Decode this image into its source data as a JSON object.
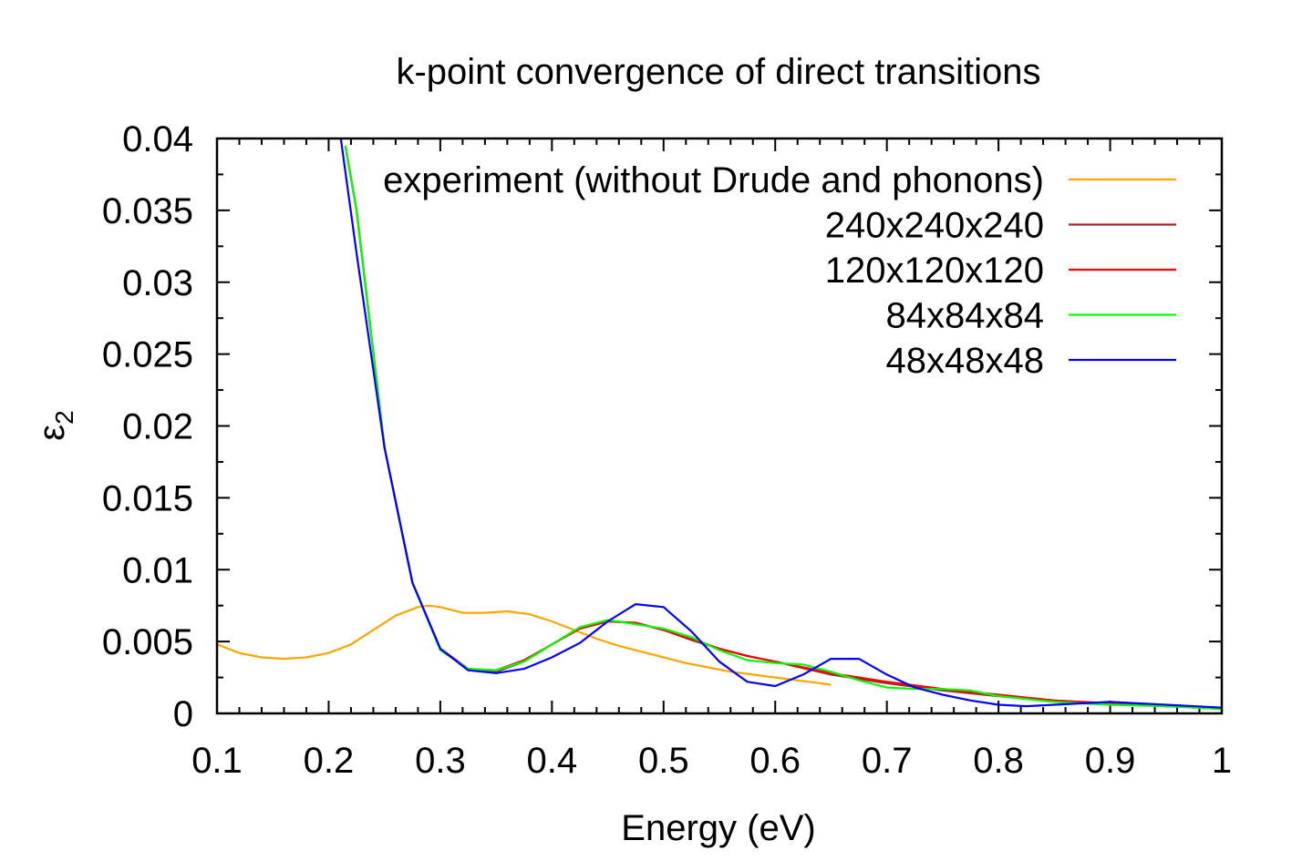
{
  "chart_data": {
    "type": "line",
    "title": "k-point convergence of direct transitions",
    "xlabel": "Energy (eV)",
    "ylabel": "ε",
    "ylabel_subscript": "2",
    "xlim": [
      0.1,
      1.0
    ],
    "ylim": [
      0,
      0.04
    ],
    "x_ticks": [
      "0.1",
      "0.2",
      "0.3",
      "0.4",
      "0.5",
      "0.6",
      "0.7",
      "0.8",
      "0.9",
      "1"
    ],
    "y_ticks": [
      "0",
      "0.005",
      "0.01",
      "0.015",
      "0.02",
      "0.025",
      "0.03",
      "0.035",
      "0.04"
    ],
    "grid": false,
    "legend_position": "top-right",
    "series": [
      {
        "name": "experiment (without Drude and phonons)",
        "color": "#ffa500",
        "x": [
          0.1,
          0.12,
          0.14,
          0.16,
          0.18,
          0.2,
          0.22,
          0.24,
          0.26,
          0.28,
          0.29,
          0.3,
          0.32,
          0.34,
          0.36,
          0.38,
          0.4,
          0.42,
          0.44,
          0.46,
          0.48,
          0.5,
          0.52,
          0.54,
          0.56,
          0.58,
          0.6,
          0.62,
          0.65
        ],
        "y": [
          0.0048,
          0.0042,
          0.0039,
          0.0038,
          0.0039,
          0.0042,
          0.0048,
          0.0058,
          0.0068,
          0.0074,
          0.0075,
          0.0074,
          0.007,
          0.007,
          0.0071,
          0.0069,
          0.0064,
          0.0058,
          0.0052,
          0.0047,
          0.0043,
          0.0039,
          0.0035,
          0.0032,
          0.0029,
          0.0027,
          0.0025,
          0.0023,
          0.002
        ]
      },
      {
        "name": "240x240x240",
        "color": "#a52a2a",
        "x": [
          0.215,
          0.225,
          0.25,
          0.275,
          0.3,
          0.325,
          0.35,
          0.375,
          0.4,
          0.425,
          0.45,
          0.475,
          0.5,
          0.525,
          0.55,
          0.575,
          0.6,
          0.65,
          0.7,
          0.75,
          0.8,
          0.85,
          0.9,
          0.95,
          1.0
        ],
        "y": [
          0.0395,
          0.035,
          0.0185,
          0.0091,
          0.0045,
          0.0031,
          0.0029,
          0.0036,
          0.0048,
          0.0059,
          0.0064,
          0.0063,
          0.0058,
          0.0051,
          0.0045,
          0.004,
          0.0036,
          0.0027,
          0.0021,
          0.0016,
          0.0012,
          0.0009,
          0.0007,
          0.0005,
          0.0004
        ]
      },
      {
        "name": "120x120x120",
        "color": "#ff0000",
        "x": [
          0.215,
          0.225,
          0.25,
          0.275,
          0.3,
          0.325,
          0.35,
          0.375,
          0.4,
          0.425,
          0.45,
          0.475,
          0.5,
          0.525,
          0.55,
          0.575,
          0.6,
          0.65,
          0.7,
          0.75,
          0.8,
          0.85,
          0.9,
          0.95,
          1.0
        ],
        "y": [
          0.0395,
          0.035,
          0.0185,
          0.0091,
          0.0045,
          0.0031,
          0.003,
          0.0037,
          0.0048,
          0.0059,
          0.0064,
          0.0063,
          0.0058,
          0.0052,
          0.0045,
          0.004,
          0.0036,
          0.0028,
          0.0022,
          0.0017,
          0.0013,
          0.0009,
          0.0007,
          0.0005,
          0.0004
        ]
      },
      {
        "name": "84x84x84",
        "color": "#00ff00",
        "x": [
          0.215,
          0.225,
          0.25,
          0.275,
          0.3,
          0.325,
          0.35,
          0.375,
          0.4,
          0.425,
          0.45,
          0.475,
          0.5,
          0.525,
          0.55,
          0.575,
          0.6,
          0.625,
          0.65,
          0.675,
          0.7,
          0.725,
          0.75,
          0.775,
          0.8,
          0.85,
          0.9,
          0.95,
          1.0
        ],
        "y": [
          0.0395,
          0.035,
          0.0185,
          0.0091,
          0.0044,
          0.0031,
          0.003,
          0.0036,
          0.0048,
          0.006,
          0.0065,
          0.0062,
          0.0059,
          0.0053,
          0.0044,
          0.0037,
          0.0035,
          0.0034,
          0.0029,
          0.0023,
          0.0018,
          0.0017,
          0.0017,
          0.0016,
          0.0012,
          0.0008,
          0.0006,
          0.0005,
          0.0003
        ]
      },
      {
        "name": "48x48x48",
        "color": "#0000ff",
        "x": [
          0.21,
          0.225,
          0.25,
          0.275,
          0.3,
          0.325,
          0.35,
          0.375,
          0.4,
          0.425,
          0.45,
          0.475,
          0.5,
          0.525,
          0.55,
          0.575,
          0.6,
          0.625,
          0.65,
          0.675,
          0.7,
          0.725,
          0.75,
          0.775,
          0.8,
          0.825,
          0.85,
          0.9,
          0.95,
          1.0
        ],
        "y": [
          0.0405,
          0.032,
          0.0185,
          0.0091,
          0.0045,
          0.003,
          0.0028,
          0.0031,
          0.0039,
          0.0049,
          0.0064,
          0.0076,
          0.0074,
          0.0057,
          0.0036,
          0.0022,
          0.0019,
          0.0027,
          0.0038,
          0.0038,
          0.0027,
          0.0018,
          0.0013,
          0.0009,
          0.0006,
          0.0005,
          0.0006,
          0.0008,
          0.0006,
          0.0004
        ]
      }
    ]
  }
}
